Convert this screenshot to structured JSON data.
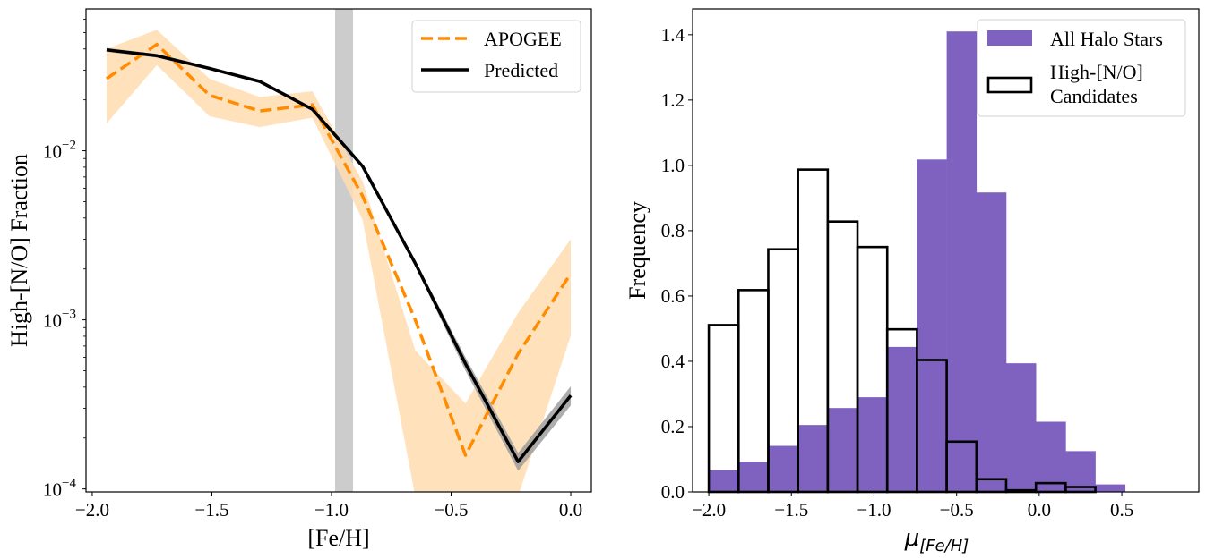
{
  "chart_data": [
    {
      "type": "line",
      "xlabel": "[Fe/H]",
      "ylabel": "High-[N/O] Fraction",
      "xlim": [
        -2.026,
        0.086
      ],
      "ylim": [
        9.6e-05,
        0.069
      ],
      "yscale": "log",
      "xticks": [
        -2.0,
        -1.5,
        -1.0,
        -0.5,
        0.0
      ],
      "xtick_labels": [
        "−2.0",
        "−1.5",
        "−1.0",
        "−0.5",
        "0.0"
      ],
      "yticks": [
        0.01,
        0.001,
        0.0001
      ],
      "ytick_labels": [
        [
          "10",
          "−2"
        ],
        [
          "10",
          "−3"
        ],
        [
          "10",
          "−4"
        ]
      ],
      "grid": false,
      "legend_placement": "top-right",
      "x": [
        -1.94,
        -1.73,
        -1.51,
        -1.3,
        -1.08,
        -0.87,
        -0.65,
        -0.44,
        -0.22,
        0.0
      ],
      "series": [
        {
          "name": "APOGEE",
          "style": "dashed",
          "color": "#ff8c00",
          "values": [
            0.0267,
            0.0426,
            0.0213,
            0.0172,
            0.0187,
            0.0054,
            0.001,
            0.000158,
            0.00063,
            0.00188
          ],
          "band_upper": [
            0.04,
            0.052,
            0.0267,
            0.0208,
            0.0225,
            0.0066,
            0.00066,
            0.00032,
            0.0011,
            0.003
          ],
          "band_lower": [
            0.0145,
            0.0321,
            0.016,
            0.0138,
            0.0157,
            0.0039,
            null,
            null,
            null,
            0.00081
          ],
          "band_color": "#ffdcb0"
        },
        {
          "name": "Predicted",
          "style": "solid",
          "color": "#000000",
          "values": [
            0.0395,
            0.0365,
            0.0307,
            0.0257,
            0.0176,
            0.0081,
            0.00216,
            0.00055,
            0.000145,
            0.000357
          ],
          "band_upper": [
            0.0405,
            0.0374,
            0.0314,
            0.0263,
            0.018,
            0.0083,
            0.00224,
            0.0006,
            0.000163,
            0.000405
          ],
          "band_lower": [
            0.0385,
            0.0356,
            0.03,
            0.0251,
            0.0172,
            0.0079,
            0.00208,
            0.0005,
            0.000128,
            0.000312
          ],
          "band_color": "#999999"
        }
      ],
      "vspan": {
        "x": [
          -0.985,
          -0.91
        ],
        "color": "#cccccc"
      }
    },
    {
      "type": "bar",
      "subtype": "histogram",
      "xlabel_main": "μ",
      "xlabel_sub": "[Fe/H]",
      "ylabel": "Frequency",
      "xlim": [
        -2.098,
        0.966
      ],
      "ylim": [
        0,
        1.479
      ],
      "xticks": [
        -2.0,
        -1.5,
        -1.0,
        -0.5,
        0.0,
        0.5
      ],
      "xtick_labels": [
        "−2.0",
        "−1.5",
        "−1.0",
        "−0.5",
        "0.0",
        "0.5"
      ],
      "yticks": [
        0.0,
        0.2,
        0.4,
        0.6,
        0.8,
        1.0,
        1.2,
        1.4
      ],
      "ytick_labels": [
        "0.0",
        "0.2",
        "0.4",
        "0.6",
        "0.8",
        "1.0",
        "1.2",
        "1.4"
      ],
      "grid": false,
      "legend_placement": "top-right",
      "bin_edges": [
        -2.0,
        -1.82,
        -1.64,
        -1.46,
        -1.28,
        -1.1,
        -0.92,
        -0.74,
        -0.56,
        -0.38,
        -0.2,
        -0.02,
        0.16,
        0.34,
        0.52
      ],
      "series": [
        {
          "name": "All Halo Stars",
          "style": "filled",
          "color": "#7f62bf",
          "values": [
            0.066,
            0.092,
            0.141,
            0.205,
            0.257,
            0.29,
            0.444,
            1.018,
            1.41,
            0.917,
            0.394,
            0.215,
            0.125,
            0.023
          ]
        },
        {
          "name": "High-[N/O] Candidates",
          "legend_lines": [
            "High-[N/O]",
            "Candidates"
          ],
          "style": "step-outline",
          "color": "#000000",
          "values": [
            0.511,
            0.618,
            0.743,
            0.987,
            0.828,
            0.75,
            0.498,
            0.404,
            0.154,
            0.039,
            0.005,
            0.027,
            0.015,
            0.0
          ]
        }
      ]
    }
  ]
}
